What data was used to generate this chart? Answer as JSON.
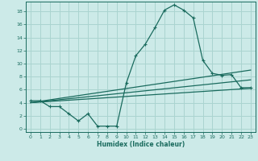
{
  "xlabel": "Humidex (Indice chaleur)",
  "bg_color": "#cceae8",
  "line_color": "#1a6b5e",
  "grid_color": "#aad4d0",
  "xlim": [
    -0.5,
    23.5
  ],
  "ylim": [
    -0.5,
    19.5
  ],
  "xticks": [
    0,
    1,
    2,
    3,
    4,
    5,
    6,
    7,
    8,
    9,
    10,
    11,
    12,
    13,
    14,
    15,
    16,
    17,
    18,
    19,
    20,
    21,
    22,
    23
  ],
  "yticks": [
    0,
    2,
    4,
    6,
    8,
    10,
    12,
    14,
    16,
    18
  ],
  "main_line_x": [
    0,
    1,
    2,
    3,
    4,
    5,
    6,
    7,
    8,
    9,
    10,
    11,
    12,
    13,
    14,
    15,
    16,
    17,
    18,
    19,
    20,
    21,
    22,
    23
  ],
  "main_line_y": [
    4.3,
    4.3,
    3.4,
    3.4,
    2.3,
    1.2,
    2.3,
    0.4,
    0.4,
    0.4,
    7.0,
    11.2,
    13.0,
    15.5,
    18.2,
    19.0,
    18.2,
    17.0,
    10.5,
    8.5,
    8.2,
    8.3,
    6.3,
    6.3
  ],
  "line2_x": [
    0,
    23
  ],
  "line2_y": [
    4.0,
    9.0
  ],
  "line3_x": [
    0,
    23
  ],
  "line3_y": [
    4.0,
    7.5
  ],
  "line4_x": [
    0,
    23
  ],
  "line4_y": [
    4.0,
    6.2
  ]
}
